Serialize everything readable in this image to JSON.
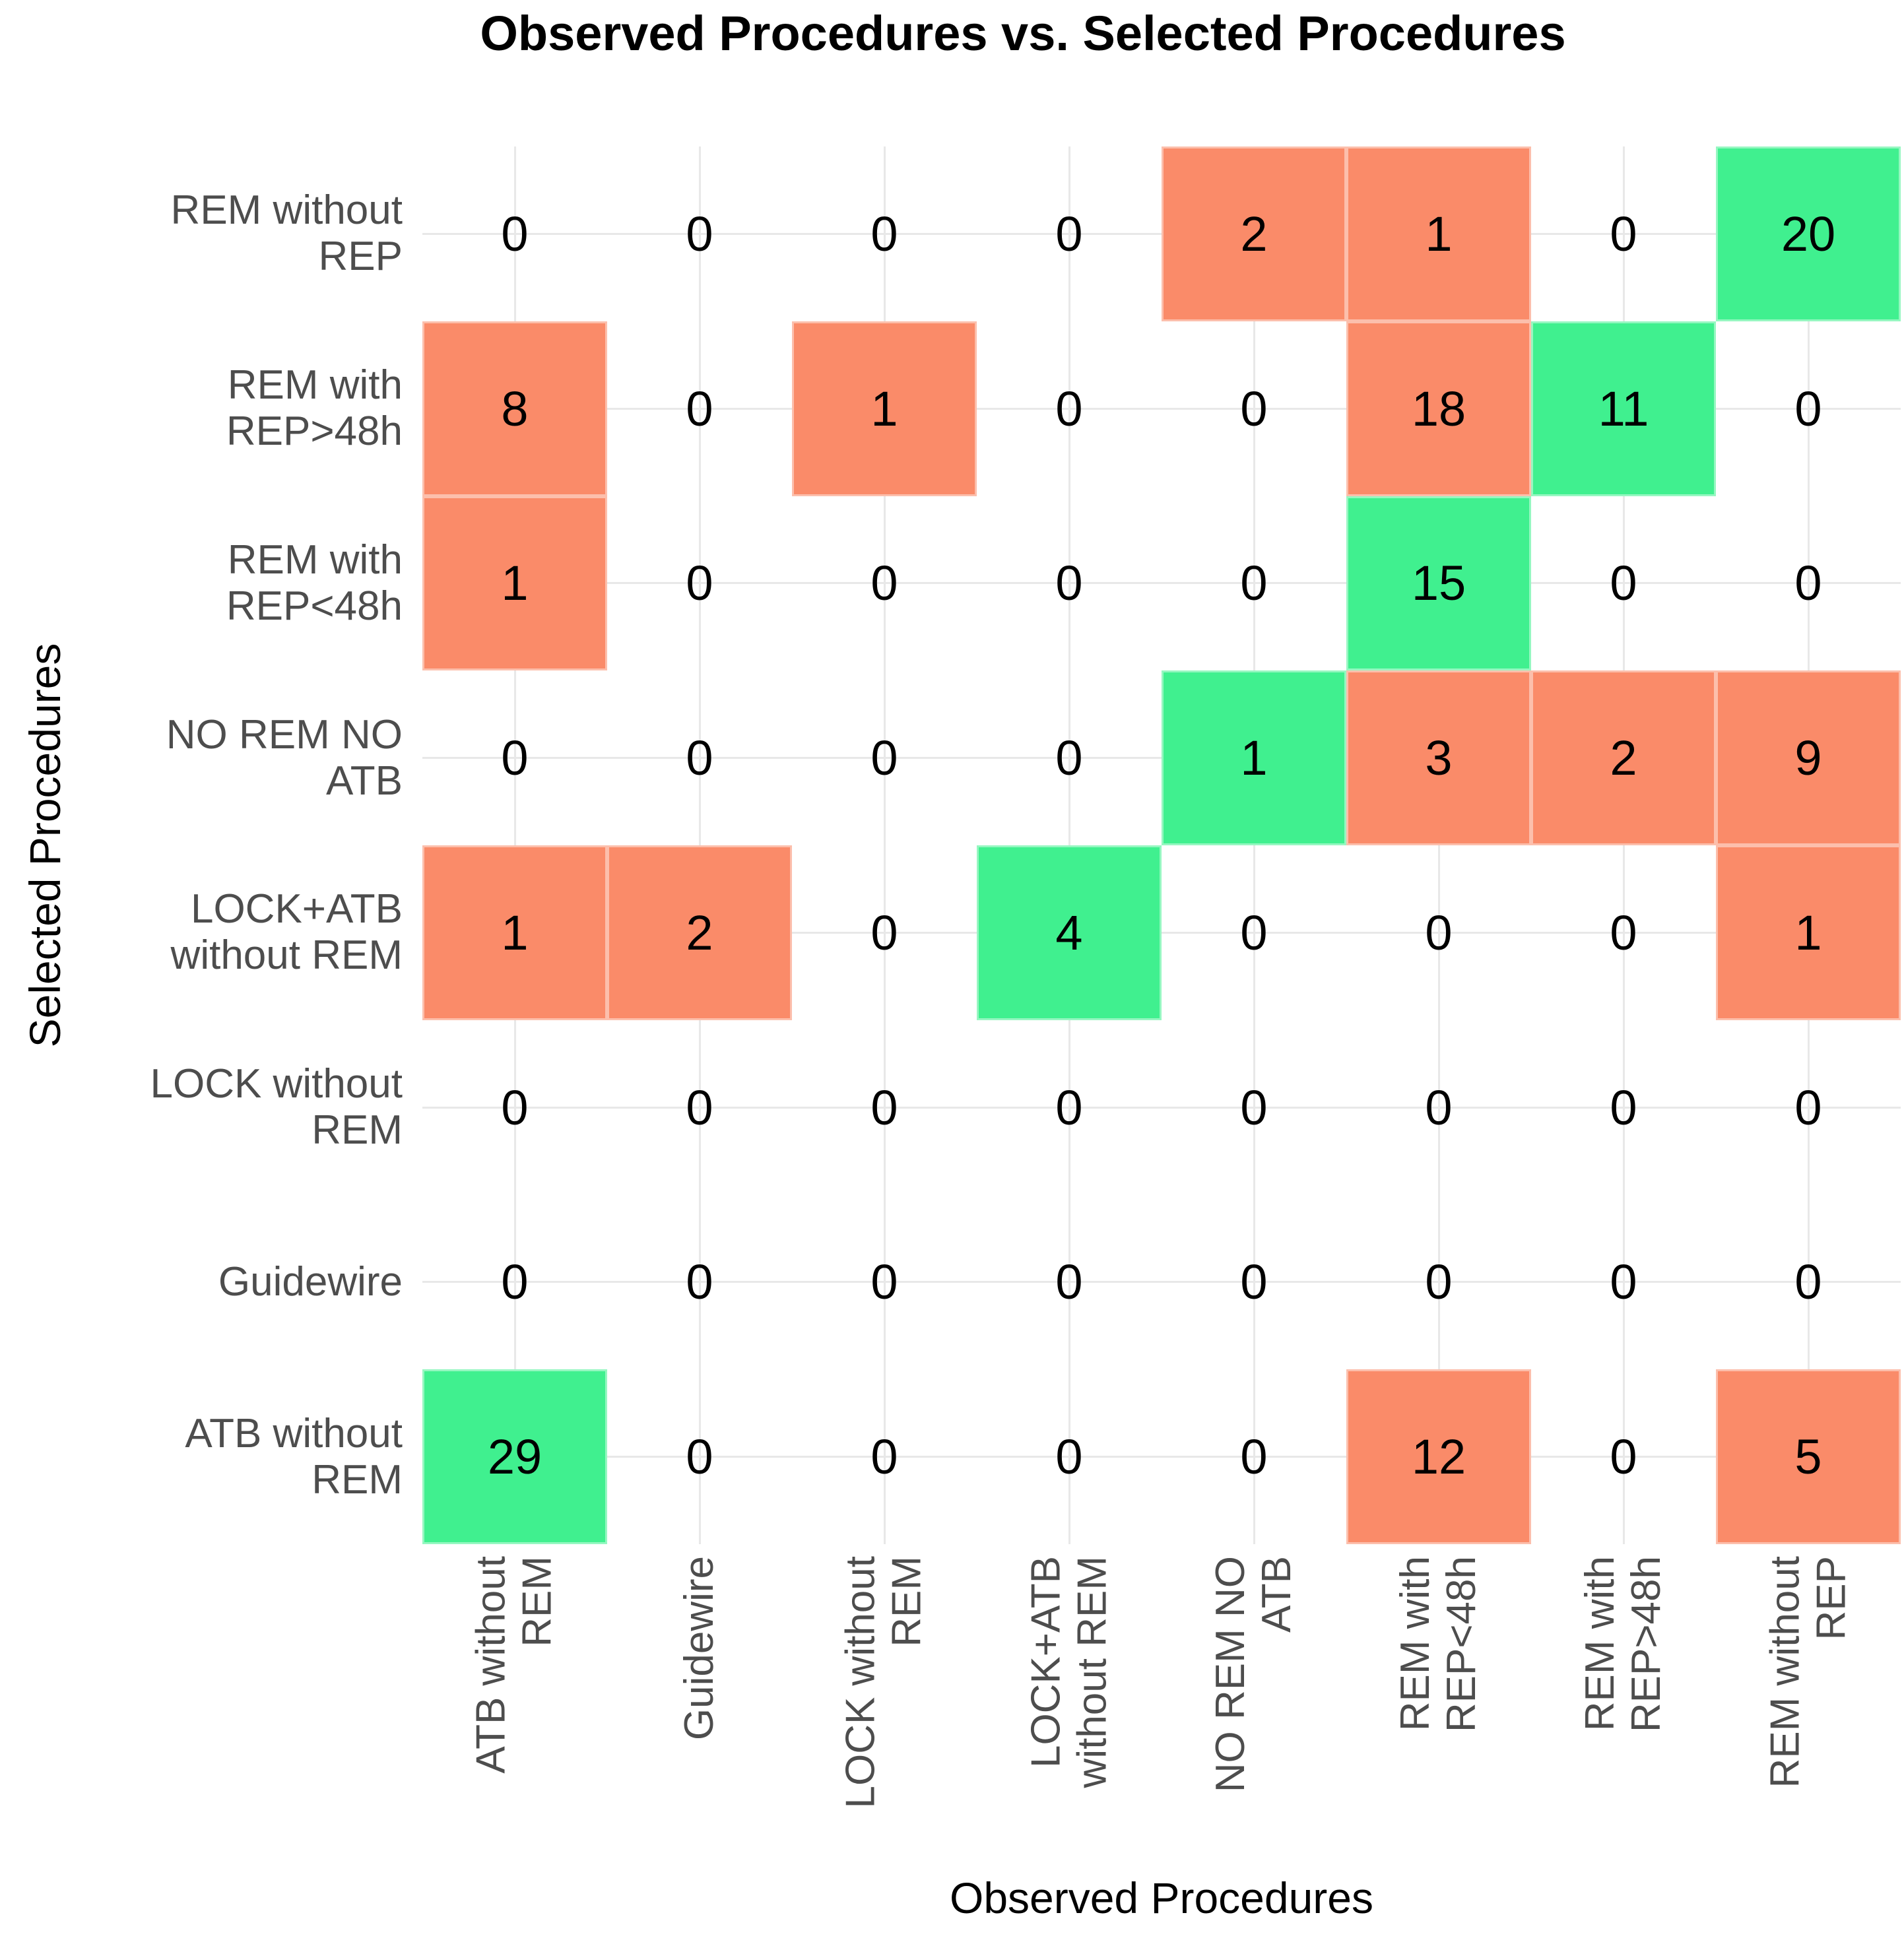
{
  "chart_data": {
    "type": "heatmap",
    "title": "Observed Procedures vs. Selected Procedures",
    "xlabel": "Observed Procedures",
    "ylabel": "Selected Procedures",
    "x_categories": [
      "ATB without REM",
      "Guidewire",
      "LOCK without REM",
      "LOCK+ATB without REM",
      "NO REM NO ATB",
      "REM with REP<48h",
      "REM with REP>48h",
      "REM without REP"
    ],
    "x_tick_display": [
      "ATB without\nREM",
      "Guidewire",
      "LOCK without\nREM",
      "LOCK+ATB\nwithout REM",
      "NO REM NO\nATB",
      "REM with\nREP<48h",
      "REM with\nREP>48h",
      "REM without\nREP"
    ],
    "y_categories_top_to_bottom": [
      "REM without REP",
      "REM with REP>48h",
      "REM with REP<48h",
      "NO REM NO ATB",
      "LOCK+ATB without REM",
      "LOCK without REM",
      "Guidewire",
      "ATB without REM"
    ],
    "y_tick_display": [
      "REM without\nREP",
      "REM with\nREP>48h",
      "REM with\nREP<48h",
      "NO REM NO\nATB",
      "LOCK+ATB\nwithout REM",
      "LOCK without\nREM",
      "Guidewire",
      "ATB without\nREM"
    ],
    "values": [
      [
        0,
        0,
        0,
        0,
        2,
        1,
        0,
        20
      ],
      [
        8,
        0,
        1,
        0,
        0,
        18,
        11,
        0
      ],
      [
        1,
        0,
        0,
        0,
        0,
        15,
        0,
        0
      ],
      [
        0,
        0,
        0,
        0,
        1,
        3,
        2,
        9
      ],
      [
        1,
        2,
        0,
        4,
        0,
        0,
        0,
        1
      ],
      [
        0,
        0,
        0,
        0,
        0,
        0,
        0,
        0
      ],
      [
        0,
        0,
        0,
        0,
        0,
        0,
        0,
        0
      ],
      [
        29,
        0,
        0,
        0,
        0,
        12,
        0,
        5
      ]
    ],
    "colors": {
      "match": "#40f08f",
      "mismatch": "#fa8b69",
      "gridline": "#e8e8e8",
      "tick_label": "#4d4d4d",
      "text": "#000000",
      "background": "#ffffff"
    },
    "grid": true,
    "legend": "none"
  }
}
